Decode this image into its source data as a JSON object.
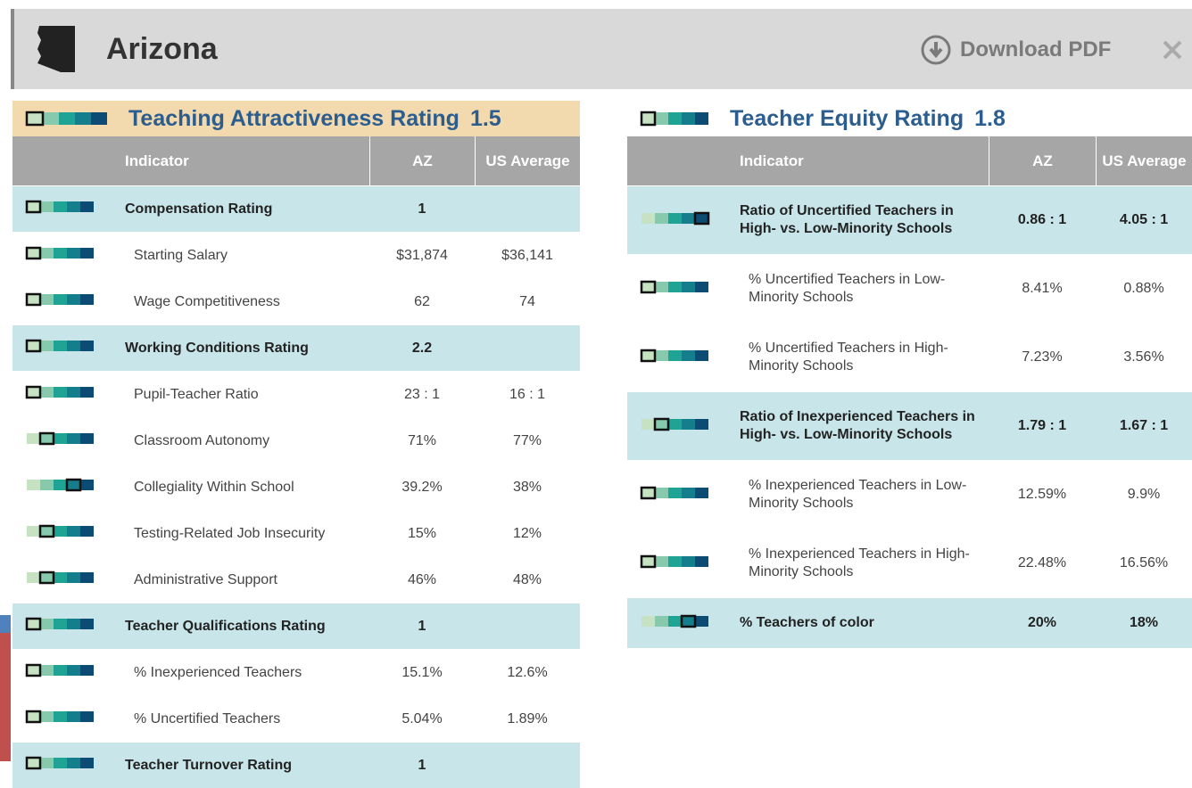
{
  "header": {
    "title": "Arizona",
    "download": "Download PDF"
  },
  "panels": [
    {
      "title": "Teaching Attractiveness Rating",
      "score": "1.5",
      "tier": 1,
      "columns": [
        "Indicator",
        "AZ",
        "US Average"
      ],
      "rows": [
        {
          "label": "Compensation Rating",
          "az": "1",
          "tier": 1,
          "group": true
        },
        {
          "label": "Starting Salary",
          "az": "$31,874",
          "us": "$36,141",
          "tier": 1
        },
        {
          "label": "Wage Competitiveness",
          "az": "62",
          "us": "74",
          "tier": 1
        },
        {
          "label": "Working Conditions Rating",
          "az": "2.2",
          "tier": 1,
          "group": true
        },
        {
          "label": "Pupil-Teacher Ratio",
          "az": "23 : 1",
          "us": "16 : 1",
          "tier": 1
        },
        {
          "label": "Classroom Autonomy",
          "az": "71%",
          "us": "77%",
          "tier": 2
        },
        {
          "label": "Collegiality Within School",
          "az": "39.2%",
          "us": "38%",
          "tier": 4
        },
        {
          "label": "Testing-Related Job Insecurity",
          "az": "15%",
          "us": "12%",
          "tier": 2
        },
        {
          "label": "Administrative Support",
          "az": "46%",
          "us": "48%",
          "tier": 2
        },
        {
          "label": "Teacher Qualifications Rating",
          "az": "1",
          "tier": 1,
          "group": true
        },
        {
          "label": "% Inexperienced Teachers",
          "az": "15.1%",
          "us": "12.6%",
          "tier": 1
        },
        {
          "label": "% Uncertified Teachers",
          "az": "5.04%",
          "us": "1.89%",
          "tier": 1
        },
        {
          "label": "Teacher Turnover Rating",
          "az": "1",
          "tier": 1,
          "group": true
        }
      ]
    },
    {
      "title": "Teacher Equity Rating",
      "score": "1.8",
      "tier": 1,
      "columns": [
        "Indicator",
        "AZ",
        "US Average"
      ],
      "rows": [
        {
          "label": "Ratio of Uncertified Teachers in High- vs. Low-Minority Schools",
          "az": "0.86 : 1",
          "us": "4.05 : 1",
          "tier": 5,
          "group": true
        },
        {
          "label": "% Uncertified Teachers in Low-Minority Schools",
          "az": "8.41%",
          "us": "0.88%",
          "tier": 1
        },
        {
          "label": "% Uncertified Teachers in High-Minority Schools",
          "az": "7.23%",
          "us": "3.56%",
          "tier": 1
        },
        {
          "label": "Ratio of Inexperienced Teachers in High- vs. Low-Minority Schools",
          "az": "1.79 : 1",
          "us": "1.67 : 1",
          "tier": 2,
          "group": true
        },
        {
          "label": "% Inexperienced Teachers in Low-Minority Schools",
          "az": "12.59%",
          "us": "9.9%",
          "tier": 1
        },
        {
          "label": "% Inexperienced Teachers in High-Minority Schools",
          "az": "22.48%",
          "us": "16.56%",
          "tier": 1
        },
        {
          "label": "% Teachers of color",
          "az": "20%",
          "us": "18%",
          "tier": 4,
          "group": true
        }
      ]
    }
  ]
}
